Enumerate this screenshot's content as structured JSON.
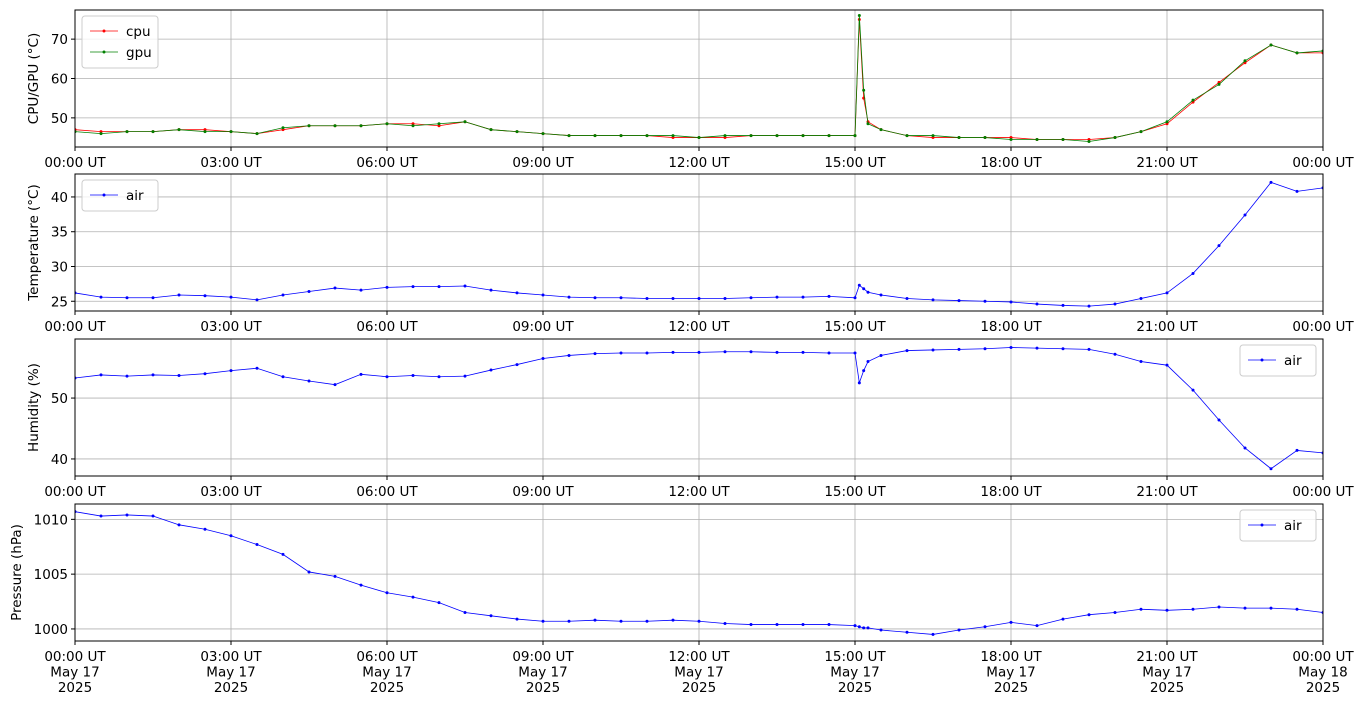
{
  "chart_data": [
    {
      "type": "line",
      "ylabel": "CPU/GPU (°C)",
      "legend": "upper left",
      "grid": true,
      "x": [
        "2025-05-17 00:00",
        "2025-05-17 00:30",
        "2025-05-17 01:00",
        "2025-05-17 01:30",
        "2025-05-17 02:00",
        "2025-05-17 02:30",
        "2025-05-17 03:00",
        "2025-05-17 03:30",
        "2025-05-17 04:00",
        "2025-05-17 04:30",
        "2025-05-17 05:00",
        "2025-05-17 05:30",
        "2025-05-17 06:00",
        "2025-05-17 06:30",
        "2025-05-17 07:00",
        "2025-05-17 07:30",
        "2025-05-17 08:00",
        "2025-05-17 08:30",
        "2025-05-17 09:00",
        "2025-05-17 09:30",
        "2025-05-17 10:00",
        "2025-05-17 10:30",
        "2025-05-17 11:00",
        "2025-05-17 11:30",
        "2025-05-17 12:00",
        "2025-05-17 12:30",
        "2025-05-17 13:00",
        "2025-05-17 13:30",
        "2025-05-17 14:00",
        "2025-05-17 14:30",
        "2025-05-17 15:00",
        "2025-05-17 15:05",
        "2025-05-17 15:10",
        "2025-05-17 15:15",
        "2025-05-17 15:30",
        "2025-05-17 16:00",
        "2025-05-17 16:30",
        "2025-05-17 17:00",
        "2025-05-17 17:30",
        "2025-05-17 18:00",
        "2025-05-17 18:30",
        "2025-05-17 19:00",
        "2025-05-17 19:30",
        "2025-05-17 20:00",
        "2025-05-17 20:30",
        "2025-05-17 21:00",
        "2025-05-17 21:30",
        "2025-05-17 22:00",
        "2025-05-17 22:30",
        "2025-05-17 23:00",
        "2025-05-17 23:30",
        "2025-05-18 00:00"
      ],
      "series": [
        {
          "name": "cpu",
          "color": "#ff0000",
          "values": [
            47,
            46.5,
            46.5,
            46.5,
            47,
            47,
            46.5,
            46,
            47,
            48,
            48,
            48,
            48.5,
            48.5,
            48,
            49,
            47,
            46.5,
            46,
            45.5,
            45.5,
            45.5,
            45.5,
            45,
            45,
            45,
            45.5,
            45.5,
            45.5,
            45.5,
            45.5,
            75,
            55,
            49,
            47,
            45.5,
            45,
            45,
            45,
            45,
            44.5,
            44.5,
            44.5,
            45,
            46.5,
            48.5,
            54,
            59,
            64,
            68.5,
            66.5,
            66.5
          ]
        },
        {
          "name": "gpu",
          "color": "#008000",
          "values": [
            46.5,
            46,
            46.5,
            46.5,
            47,
            46.5,
            46.5,
            46,
            47.5,
            48,
            48,
            48,
            48.5,
            48,
            48.5,
            49,
            47,
            46.5,
            46,
            45.5,
            45.5,
            45.5,
            45.5,
            45.5,
            45,
            45.5,
            45.5,
            45.5,
            45.5,
            45.5,
            45.5,
            76,
            57,
            48.5,
            47,
            45.5,
            45.5,
            45,
            45,
            44.5,
            44.5,
            44.5,
            44,
            45,
            46.5,
            49,
            54.5,
            58.5,
            64.5,
            68.5,
            66.5,
            67
          ]
        }
      ],
      "xlim": [
        "2025-05-17 00:00",
        "2025-05-18 00:00"
      ],
      "xticks": [
        {
          "value": "2025-05-17 00:00",
          "label": "00:00 UT"
        },
        {
          "value": "2025-05-17 03:00",
          "label": "03:00 UT"
        },
        {
          "value": "2025-05-17 06:00",
          "label": "06:00 UT"
        },
        {
          "value": "2025-05-17 09:00",
          "label": "09:00 UT"
        },
        {
          "value": "2025-05-17 12:00",
          "label": "12:00 UT"
        },
        {
          "value": "2025-05-17 15:00",
          "label": "15:00 UT"
        },
        {
          "value": "2025-05-17 18:00",
          "label": "18:00 UT"
        },
        {
          "value": "2025-05-17 21:00",
          "label": "21:00 UT"
        },
        {
          "value": "2025-05-18 00:00",
          "label": "00:00 UT"
        }
      ],
      "ylim": [
        42.6,
        77.4
      ],
      "yticks": [
        50,
        60,
        70
      ]
    },
    {
      "type": "line",
      "ylabel": "Temperature (°C)",
      "legend": "upper left",
      "grid": true,
      "x": [
        "2025-05-17 00:00",
        "2025-05-17 00:30",
        "2025-05-17 01:00",
        "2025-05-17 01:30",
        "2025-05-17 02:00",
        "2025-05-17 02:30",
        "2025-05-17 03:00",
        "2025-05-17 03:30",
        "2025-05-17 04:00",
        "2025-05-17 04:30",
        "2025-05-17 05:00",
        "2025-05-17 05:30",
        "2025-05-17 06:00",
        "2025-05-17 06:30",
        "2025-05-17 07:00",
        "2025-05-17 07:30",
        "2025-05-17 08:00",
        "2025-05-17 08:30",
        "2025-05-17 09:00",
        "2025-05-17 09:30",
        "2025-05-17 10:00",
        "2025-05-17 10:30",
        "2025-05-17 11:00",
        "2025-05-17 11:30",
        "2025-05-17 12:00",
        "2025-05-17 12:30",
        "2025-05-17 13:00",
        "2025-05-17 13:30",
        "2025-05-17 14:00",
        "2025-05-17 14:30",
        "2025-05-17 15:00",
        "2025-05-17 15:05",
        "2025-05-17 15:10",
        "2025-05-17 15:15",
        "2025-05-17 15:30",
        "2025-05-17 16:00",
        "2025-05-17 16:30",
        "2025-05-17 17:00",
        "2025-05-17 17:30",
        "2025-05-17 18:00",
        "2025-05-17 18:30",
        "2025-05-17 19:00",
        "2025-05-17 19:30",
        "2025-05-17 20:00",
        "2025-05-17 20:30",
        "2025-05-17 21:00",
        "2025-05-17 21:30",
        "2025-05-17 22:00",
        "2025-05-17 22:30",
        "2025-05-17 23:00",
        "2025-05-17 23:30",
        "2025-05-18 00:00"
      ],
      "series": [
        {
          "name": "air",
          "color": "#0000ff",
          "values": [
            26.2,
            25.6,
            25.5,
            25.5,
            25.9,
            25.8,
            25.6,
            25.2,
            25.9,
            26.4,
            26.9,
            26.6,
            27,
            27.1,
            27.1,
            27.2,
            26.6,
            26.2,
            25.9,
            25.6,
            25.5,
            25.5,
            25.4,
            25.4,
            25.4,
            25.4,
            25.5,
            25.6,
            25.6,
            25.7,
            25.5,
            27.3,
            26.8,
            26.3,
            25.9,
            25.4,
            25.2,
            25.1,
            25,
            24.9,
            24.6,
            24.4,
            24.3,
            24.6,
            25.4,
            26.2,
            29,
            33,
            37.4,
            42.1,
            40.8,
            41.3
          ]
        }
      ],
      "xlim": [
        "2025-05-17 00:00",
        "2025-05-18 00:00"
      ],
      "xticks": [
        {
          "value": "2025-05-17 00:00",
          "label": "00:00 UT"
        },
        {
          "value": "2025-05-17 03:00",
          "label": "03:00 UT"
        },
        {
          "value": "2025-05-17 06:00",
          "label": "06:00 UT"
        },
        {
          "value": "2025-05-17 09:00",
          "label": "09:00 UT"
        },
        {
          "value": "2025-05-17 12:00",
          "label": "12:00 UT"
        },
        {
          "value": "2025-05-17 15:00",
          "label": "15:00 UT"
        },
        {
          "value": "2025-05-17 18:00",
          "label": "18:00 UT"
        },
        {
          "value": "2025-05-17 21:00",
          "label": "21:00 UT"
        },
        {
          "value": "2025-05-18 00:00",
          "label": "00:00 UT"
        }
      ],
      "ylim": [
        23.6,
        43.3
      ],
      "yticks": [
        25,
        30,
        35,
        40
      ]
    },
    {
      "type": "line",
      "ylabel": "Humidity (%)",
      "legend": "upper right",
      "grid": true,
      "x": [
        "2025-05-17 00:00",
        "2025-05-17 00:30",
        "2025-05-17 01:00",
        "2025-05-17 01:30",
        "2025-05-17 02:00",
        "2025-05-17 02:30",
        "2025-05-17 03:00",
        "2025-05-17 03:30",
        "2025-05-17 04:00",
        "2025-05-17 04:30",
        "2025-05-17 05:00",
        "2025-05-17 05:30",
        "2025-05-17 06:00",
        "2025-05-17 06:30",
        "2025-05-17 07:00",
        "2025-05-17 07:30",
        "2025-05-17 08:00",
        "2025-05-17 08:30",
        "2025-05-17 09:00",
        "2025-05-17 09:30",
        "2025-05-17 10:00",
        "2025-05-17 10:30",
        "2025-05-17 11:00",
        "2025-05-17 11:30",
        "2025-05-17 12:00",
        "2025-05-17 12:30",
        "2025-05-17 13:00",
        "2025-05-17 13:30",
        "2025-05-17 14:00",
        "2025-05-17 14:30",
        "2025-05-17 15:00",
        "2025-05-17 15:05",
        "2025-05-17 15:10",
        "2025-05-17 15:15",
        "2025-05-17 15:30",
        "2025-05-17 16:00",
        "2025-05-17 16:30",
        "2025-05-17 17:00",
        "2025-05-17 17:30",
        "2025-05-17 18:00",
        "2025-05-17 18:30",
        "2025-05-17 19:00",
        "2025-05-17 19:30",
        "2025-05-17 20:00",
        "2025-05-17 20:30",
        "2025-05-17 21:00",
        "2025-05-17 21:30",
        "2025-05-17 22:00",
        "2025-05-17 22:30",
        "2025-05-17 23:00",
        "2025-05-17 23:30",
        "2025-05-18 00:00"
      ],
      "series": [
        {
          "name": "air",
          "color": "#0000ff",
          "values": [
            53.3,
            53.8,
            53.6,
            53.8,
            53.7,
            54,
            54.5,
            54.9,
            53.5,
            52.8,
            52.2,
            53.9,
            53.5,
            53.7,
            53.5,
            53.6,
            54.6,
            55.5,
            56.5,
            57,
            57.3,
            57.4,
            57.4,
            57.5,
            57.5,
            57.6,
            57.6,
            57.5,
            57.5,
            57.4,
            57.4,
            52.5,
            54.5,
            56,
            57,
            57.8,
            57.9,
            58,
            58.1,
            58.3,
            58.2,
            58.1,
            58,
            57.2,
            56,
            55.4,
            51.3,
            46.4,
            41.8,
            38.4,
            41.4,
            41
          ]
        }
      ],
      "xlim": [
        "2025-05-17 00:00",
        "2025-05-18 00:00"
      ],
      "xticks": [
        {
          "value": "2025-05-17 00:00",
          "label": "00:00 UT"
        },
        {
          "value": "2025-05-17 03:00",
          "label": "03:00 UT"
        },
        {
          "value": "2025-05-17 06:00",
          "label": "06:00 UT"
        },
        {
          "value": "2025-05-17 09:00",
          "label": "09:00 UT"
        },
        {
          "value": "2025-05-17 12:00",
          "label": "12:00 UT"
        },
        {
          "value": "2025-05-17 15:00",
          "label": "15:00 UT"
        },
        {
          "value": "2025-05-17 18:00",
          "label": "18:00 UT"
        },
        {
          "value": "2025-05-17 21:00",
          "label": "21:00 UT"
        },
        {
          "value": "2025-05-18 00:00",
          "label": "00:00 UT"
        }
      ],
      "ylim": [
        37.2,
        59.7
      ],
      "yticks": [
        40,
        50
      ]
    },
    {
      "type": "line",
      "ylabel": "Pressure (hPa)",
      "legend": "upper right",
      "grid": true,
      "x": [
        "2025-05-17 00:00",
        "2025-05-17 00:30",
        "2025-05-17 01:00",
        "2025-05-17 01:30",
        "2025-05-17 02:00",
        "2025-05-17 02:30",
        "2025-05-17 03:00",
        "2025-05-17 03:30",
        "2025-05-17 04:00",
        "2025-05-17 04:30",
        "2025-05-17 05:00",
        "2025-05-17 05:30",
        "2025-05-17 06:00",
        "2025-05-17 06:30",
        "2025-05-17 07:00",
        "2025-05-17 07:30",
        "2025-05-17 08:00",
        "2025-05-17 08:30",
        "2025-05-17 09:00",
        "2025-05-17 09:30",
        "2025-05-17 10:00",
        "2025-05-17 10:30",
        "2025-05-17 11:00",
        "2025-05-17 11:30",
        "2025-05-17 12:00",
        "2025-05-17 12:30",
        "2025-05-17 13:00",
        "2025-05-17 13:30",
        "2025-05-17 14:00",
        "2025-05-17 14:30",
        "2025-05-17 15:00",
        "2025-05-17 15:05",
        "2025-05-17 15:10",
        "2025-05-17 15:15",
        "2025-05-17 15:30",
        "2025-05-17 16:00",
        "2025-05-17 16:30",
        "2025-05-17 17:00",
        "2025-05-17 17:30",
        "2025-05-17 18:00",
        "2025-05-17 18:30",
        "2025-05-17 19:00",
        "2025-05-17 19:30",
        "2025-05-17 20:00",
        "2025-05-17 20:30",
        "2025-05-17 21:00",
        "2025-05-17 21:30",
        "2025-05-17 22:00",
        "2025-05-17 22:30",
        "2025-05-17 23:00",
        "2025-05-17 23:30",
        "2025-05-18 00:00"
      ],
      "series": [
        {
          "name": "air",
          "color": "#0000ff",
          "values": [
            1010.7,
            1010.3,
            1010.4,
            1010.3,
            1009.5,
            1009.1,
            1008.5,
            1007.7,
            1006.8,
            1005.2,
            1004.8,
            1004,
            1003.3,
            1002.9,
            1002.4,
            1001.5,
            1001.2,
            1000.9,
            1000.7,
            1000.7,
            1000.8,
            1000.7,
            1000.7,
            1000.8,
            1000.7,
            1000.5,
            1000.4,
            1000.4,
            1000.4,
            1000.4,
            1000.3,
            1000.2,
            1000.1,
            1000.1,
            999.9,
            999.7,
            999.5,
            999.9,
            1000.2,
            1000.6,
            1000.3,
            1000.9,
            1001.3,
            1001.5,
            1001.8,
            1001.7,
            1001.8,
            1002,
            1001.9,
            1001.9,
            1001.8,
            1001.5
          ]
        }
      ],
      "xlim": [
        "2025-05-17 00:00",
        "2025-05-18 00:00"
      ],
      "xticks": [
        {
          "value": "2025-05-17 00:00",
          "label": "00:00 UT\nMay 17\n2025"
        },
        {
          "value": "2025-05-17 03:00",
          "label": "03:00 UT\nMay 17\n2025"
        },
        {
          "value": "2025-05-17 06:00",
          "label": "06:00 UT\nMay 17\n2025"
        },
        {
          "value": "2025-05-17 09:00",
          "label": "09:00 UT\nMay 17\n2025"
        },
        {
          "value": "2025-05-17 12:00",
          "label": "12:00 UT\nMay 17\n2025"
        },
        {
          "value": "2025-05-17 15:00",
          "label": "15:00 UT\nMay 17\n2025"
        },
        {
          "value": "2025-05-17 18:00",
          "label": "18:00 UT\nMay 17\n2025"
        },
        {
          "value": "2025-05-17 21:00",
          "label": "21:00 UT\nMay 17\n2025"
        },
        {
          "value": "2025-05-18 00:00",
          "label": "00:00 UT\nMay 18\n2025"
        }
      ],
      "ylim": [
        998.9,
        1011.4
      ],
      "yticks": [
        1000,
        1005,
        1010
      ]
    }
  ]
}
